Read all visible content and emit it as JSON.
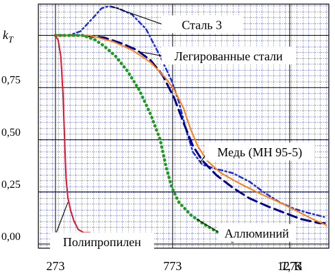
{
  "chart_data": {
    "type": "line",
    "title": "",
    "ylabel": {
      "main": "k",
      "sub": "T"
    },
    "xlabel": {
      "var": "T",
      "unit": ", К"
    },
    "xlim": [
      200,
      1440
    ],
    "ylim": [
      -0.02,
      1.15
    ],
    "x_ticks": [
      {
        "value": 273,
        "label": "273"
      },
      {
        "value": 773,
        "label": "773"
      },
      {
        "value": 1273,
        "label": "1273"
      }
    ],
    "y_ticks": [
      {
        "value": 0.0,
        "label": "0,00"
      },
      {
        "value": 0.25,
        "label": "0,25"
      },
      {
        "value": 0.5,
        "label": "0,50"
      },
      {
        "value": 0.75,
        "label": "0,75"
      }
    ],
    "grid": true,
    "series": [
      {
        "name": "Сталь 3",
        "color": "#1f2bd6",
        "dash": "6 4 2 4",
        "width": 2.5,
        "points": [
          [
            273,
            1
          ],
          [
            330,
            1
          ],
          [
            380,
            1.02
          ],
          [
            430,
            1.08
          ],
          [
            470,
            1.13
          ],
          [
            500,
            1.14
          ],
          [
            540,
            1.13
          ],
          [
            600,
            1.1
          ],
          [
            660,
            1.03
          ],
          [
            720,
            0.9
          ],
          [
            770,
            0.78
          ],
          [
            800,
            0.68
          ],
          [
            830,
            0.55
          ],
          [
            860,
            0.44
          ],
          [
            900,
            0.38
          ],
          [
            960,
            0.36
          ],
          [
            1030,
            0.34
          ],
          [
            1100,
            0.3
          ],
          [
            1160,
            0.25
          ],
          [
            1230,
            0.2
          ],
          [
            1290,
            0.17
          ],
          [
            1350,
            0.15
          ],
          [
            1420,
            0.13
          ]
        ]
      },
      {
        "name": "Легированные стали",
        "color": "#00008b",
        "dash": "14 7",
        "width": 3,
        "points": [
          [
            273,
            1
          ],
          [
            380,
            1
          ],
          [
            480,
            0.99
          ],
          [
            560,
            0.96
          ],
          [
            620,
            0.93
          ],
          [
            680,
            0.88
          ],
          [
            730,
            0.81
          ],
          [
            780,
            0.7
          ],
          [
            820,
            0.58
          ],
          [
            860,
            0.47
          ],
          [
            900,
            0.4
          ],
          [
            960,
            0.33
          ],
          [
            1030,
            0.27
          ],
          [
            1100,
            0.22
          ],
          [
            1180,
            0.18
          ],
          [
            1250,
            0.15
          ],
          [
            1320,
            0.12
          ],
          [
            1400,
            0.1
          ],
          [
            1430,
            0.1
          ]
        ]
      },
      {
        "name": "Медь (МН 95-5)",
        "color": "#ff7f0e",
        "dash": "",
        "width": 2,
        "points": [
          [
            273,
            1
          ],
          [
            420,
            1
          ],
          [
            520,
            0.97
          ],
          [
            600,
            0.93
          ],
          [
            680,
            0.87
          ],
          [
            740,
            0.8
          ],
          [
            780,
            0.74
          ],
          [
            820,
            0.65
          ],
          [
            850,
            0.55
          ],
          [
            880,
            0.47
          ],
          [
            920,
            0.4
          ],
          [
            980,
            0.34
          ],
          [
            1060,
            0.29
          ],
          [
            1150,
            0.24
          ],
          [
            1230,
            0.2
          ],
          [
            1300,
            0.16
          ],
          [
            1370,
            0.12
          ],
          [
            1430,
            0.09
          ]
        ]
      },
      {
        "name": "Аллюминий",
        "color": "#1a9e1a",
        "dash": "0.5 6",
        "width": 4.5,
        "points": [
          [
            273,
            1
          ],
          [
            390,
            1
          ],
          [
            440,
            0.98
          ],
          [
            480,
            0.95
          ],
          [
            530,
            0.9
          ],
          [
            580,
            0.83
          ],
          [
            630,
            0.74
          ],
          [
            680,
            0.62
          ],
          [
            720,
            0.5
          ],
          [
            745,
            0.37
          ],
          [
            770,
            0.27
          ],
          [
            800,
            0.2
          ],
          [
            850,
            0.14
          ],
          [
            900,
            0.1
          ],
          [
            960,
            0.06
          ],
          [
            1020,
            0.02
          ],
          [
            1040,
            0.0
          ]
        ]
      },
      {
        "name": "Полипропилен",
        "color": "#e8102a",
        "dash": "",
        "width": 2,
        "points": [
          [
            270,
            1
          ],
          [
            284,
            0.98
          ],
          [
            296,
            0.9
          ],
          [
            305,
            0.72
          ],
          [
            312,
            0.5
          ],
          [
            318,
            0.32
          ],
          [
            326,
            0.22
          ],
          [
            338,
            0.16
          ],
          [
            352,
            0.11
          ],
          [
            370,
            0.07
          ],
          [
            393,
            0.055
          ],
          [
            420,
            0.055
          ]
        ]
      }
    ],
    "annotations": [
      {
        "series": "Сталь 3",
        "text": "Сталь 3",
        "box": true,
        "box_w": 118,
        "at": [
          898,
          1.05
        ],
        "tip": [
          510,
          1.14
        ]
      },
      {
        "series": "Легированные стали",
        "text": "Легированные стали",
        "box": true,
        "box_w": 196,
        "at": [
          1012,
          0.9
        ],
        "tip": [
          640,
          0.92
        ]
      },
      {
        "series": "Медь (МН 95-5)",
        "text": "Медь (МН 95-5)",
        "box": true,
        "box_w": 160,
        "at": [
          1145,
          0.44
        ],
        "tip": [
          890,
          0.39
        ]
      },
      {
        "series": "Аллюминий",
        "text": "Аллюминий",
        "box": true,
        "box_w": 112,
        "at": [
          1132,
          0.05
        ],
        "tip": [
          875,
          0.12
        ]
      },
      {
        "series": "Полипропилен",
        "text": "Полипропилен",
        "box": true,
        "box_w": 152,
        "at": [
          472,
          0.01
        ],
        "tip": [
          326,
          0.2
        ]
      }
    ]
  }
}
